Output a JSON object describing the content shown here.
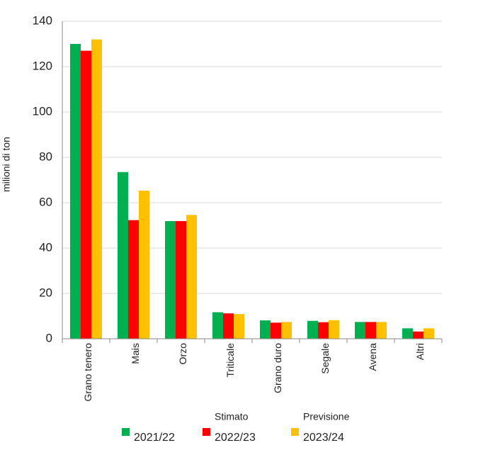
{
  "chart_data": {
    "type": "bar",
    "y_label": "milioni di ton",
    "categories": [
      "Grano tenero",
      "Mais",
      "Orzo",
      "Triticale",
      "Grano duro",
      "Segale",
      "Avena",
      "Altri"
    ],
    "series": [
      {
        "name": "2021/22",
        "color": "#00b050",
        "values": [
          130,
          73.5,
          51.9,
          11.7,
          8.1,
          7.9,
          7.4,
          4.6
        ]
      },
      {
        "name": "2022/23",
        "color": "#ff0000",
        "values": [
          127,
          52.3,
          51.9,
          11.2,
          7.1,
          7.3,
          7.4,
          3.2
        ]
      },
      {
        "name": "2023/24",
        "color": "#ffc000",
        "values": [
          132,
          65.3,
          54.6,
          10.9,
          7.4,
          8.2,
          7.4,
          4.6
        ]
      }
    ],
    "legend_headers": [
      "Stimato",
      "Previsione"
    ],
    "ylim": [
      0,
      140
    ],
    "yticks": [
      0,
      20,
      40,
      60,
      80,
      100,
      120,
      140
    ],
    "grid": true
  }
}
